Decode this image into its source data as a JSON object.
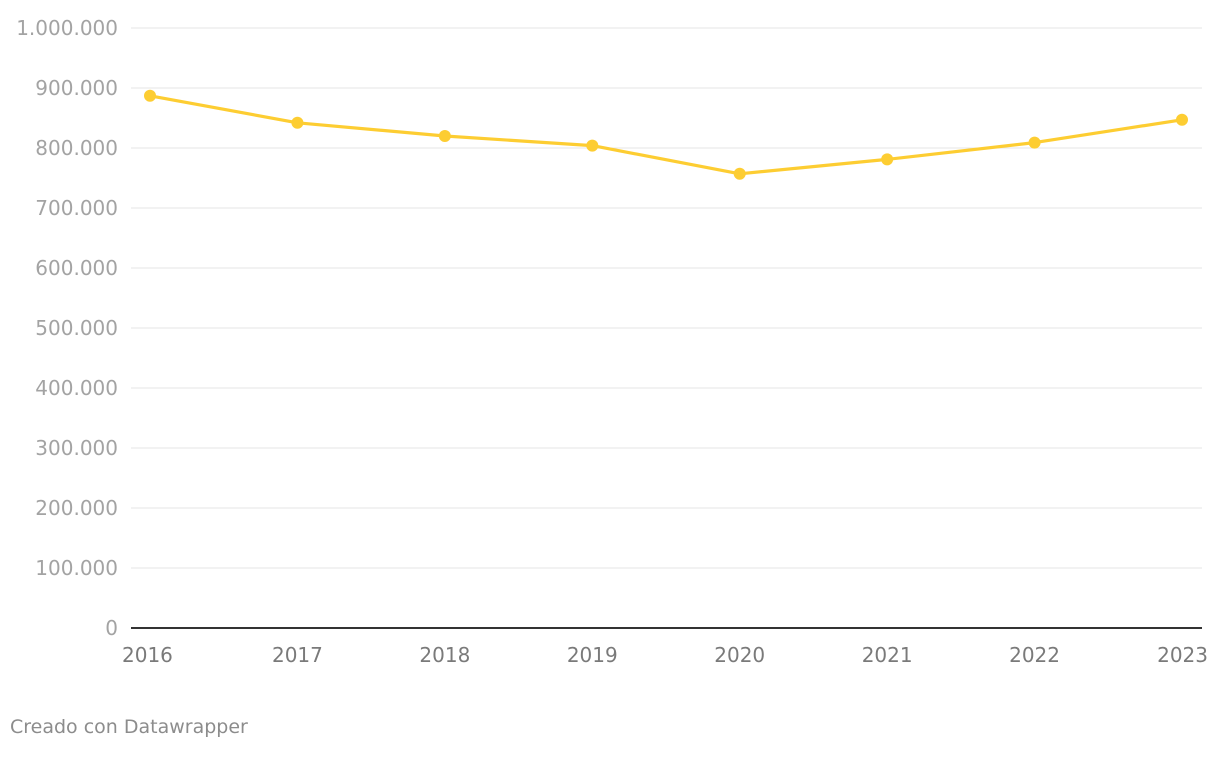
{
  "chart_data": {
    "type": "line",
    "title": "",
    "xlabel": "",
    "ylabel": "",
    "categories": [
      "2016",
      "2017",
      "2018",
      "2019",
      "2020",
      "2021",
      "2022",
      "2023"
    ],
    "series": [
      {
        "values": [
          887000,
          842000,
          820000,
          804000,
          757000,
          781000,
          809000,
          847000
        ],
        "color": "#fdcd32"
      }
    ],
    "ylim": [
      0,
      1000000
    ],
    "yticks": [
      0,
      100000,
      200000,
      300000,
      400000,
      500000,
      600000,
      700000,
      800000,
      900000,
      1000000
    ],
    "ytick_labels": [
      "0",
      "100.000",
      "200.000",
      "300.000",
      "400.000",
      "500.000",
      "600.000",
      "700.000",
      "800.000",
      "900.000",
      "1.000.000"
    ],
    "grid": true,
    "legend": "none"
  },
  "footer": {
    "credit": "Creado con Datawrapper"
  }
}
